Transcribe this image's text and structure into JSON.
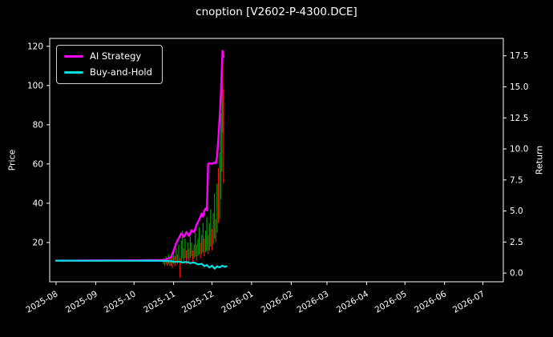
{
  "chart_data": {
    "type": "line",
    "title": "cnoption [V2602-P-4300.DCE]",
    "xlabel": "",
    "ylabel_left": "Price",
    "ylabel_right": "Return",
    "xlim": [
      -5,
      350
    ],
    "ylim_left": [
      0,
      124
    ],
    "ylim_right": [
      -0.7,
      18.9
    ],
    "grid": false,
    "legend_position": "upper-left",
    "frame_color": "#ffffff",
    "text_color": "#ffffff",
    "background_color": "#000000",
    "x_ticks": [
      {
        "pos": 0,
        "label": "2025-08"
      },
      {
        "pos": 31,
        "label": "2025-09"
      },
      {
        "pos": 61,
        "label": "2025-10"
      },
      {
        "pos": 92,
        "label": "2025-11"
      },
      {
        "pos": 122,
        "label": "2025-12"
      },
      {
        "pos": 153,
        "label": "2026-01"
      },
      {
        "pos": 184,
        "label": "2026-02"
      },
      {
        "pos": 212,
        "label": "2026-03"
      },
      {
        "pos": 243,
        "label": "2026-04"
      },
      {
        "pos": 273,
        "label": "2026-05"
      },
      {
        "pos": 304,
        "label": "2026-06"
      },
      {
        "pos": 334,
        "label": "2026-07"
      }
    ],
    "y_ticks_left": [
      {
        "pos": 20,
        "label": "20"
      },
      {
        "pos": 40,
        "label": "40"
      },
      {
        "pos": 60,
        "label": "60"
      },
      {
        "pos": 80,
        "label": "80"
      },
      {
        "pos": 100,
        "label": "100"
      },
      {
        "pos": 120,
        "label": "120"
      }
    ],
    "y_ticks_right": [
      {
        "pos": 0,
        "label": "0.0"
      },
      {
        "pos": 2.5,
        "label": "2.5"
      },
      {
        "pos": 5.0,
        "label": "5.0"
      },
      {
        "pos": 7.5,
        "label": "7.5"
      },
      {
        "pos": 10.0,
        "label": "10.0"
      },
      {
        "pos": 12.5,
        "label": "12.5"
      },
      {
        "pos": 15.0,
        "label": "15.0"
      },
      {
        "pos": 17.5,
        "label": "17.5"
      }
    ],
    "series": [
      {
        "name": "AI Strategy",
        "color": "#ff00ff",
        "axis": "right",
        "width": 2.4,
        "x": [
          0,
          15,
          30,
          45,
          60,
          75,
          85,
          90,
          92,
          94,
          96,
          98,
          100,
          102,
          104,
          106,
          108,
          110,
          112,
          114,
          115,
          116,
          117,
          118,
          119,
          120,
          122,
          124,
          125,
          126,
          127,
          128,
          129,
          129.6,
          130.3,
          131
        ],
        "y": [
          1.0,
          1.0,
          1.02,
          1.02,
          1.03,
          1.04,
          1.05,
          1.3,
          1.8,
          2.4,
          2.8,
          3.2,
          2.9,
          3.3,
          3.0,
          3.45,
          3.3,
          3.9,
          4.3,
          4.8,
          4.55,
          5.0,
          5.2,
          5.05,
          8.8,
          8.85,
          8.8,
          8.9,
          8.85,
          9.4,
          10.8,
          12.5,
          14.5,
          16.2,
          17.9,
          17.4
        ]
      },
      {
        "name": "Buy-and-Hold",
        "color": "#00e0e0",
        "axis": "right",
        "width": 2.2,
        "x": [
          0,
          15,
          30,
          45,
          60,
          75,
          85,
          90,
          93,
          96,
          99,
          102,
          105,
          108,
          111,
          114,
          116,
          118,
          120,
          122,
          124,
          126,
          128,
          130,
          132,
          133.5
        ],
        "y": [
          1.0,
          1.0,
          0.99,
          1.0,
          0.99,
          1.0,
          0.98,
          0.95,
          0.9,
          0.93,
          0.85,
          0.9,
          0.8,
          0.85,
          0.7,
          0.75,
          0.55,
          0.65,
          0.45,
          0.6,
          0.35,
          0.55,
          0.45,
          0.6,
          0.5,
          0.55
        ]
      }
    ],
    "candles": {
      "axis": "left",
      "up_color": "#00a000",
      "down_color": "#ee1111",
      "points": [
        [
          84,
          9,
          12,
          "u"
        ],
        [
          85,
          8,
          11,
          "d"
        ],
        [
          86,
          9,
          13,
          "u"
        ],
        [
          87,
          8,
          12,
          "d"
        ],
        [
          88,
          9,
          14,
          "u"
        ],
        [
          89,
          8,
          12,
          "d"
        ],
        [
          90,
          8,
          12,
          "u"
        ],
        [
          91,
          7,
          13,
          "d"
        ],
        [
          92,
          9,
          15,
          "u"
        ],
        [
          93,
          8,
          13,
          "d"
        ],
        [
          94,
          10,
          17,
          "u"
        ],
        [
          95,
          9,
          14,
          "d"
        ],
        [
          96,
          11,
          19,
          "u"
        ],
        [
          97,
          2,
          12,
          "d"
        ],
        [
          98,
          10,
          21,
          "u"
        ],
        [
          99,
          12,
          26,
          "u"
        ],
        [
          100,
          10,
          17,
          "d"
        ],
        [
          101,
          12,
          22,
          "u"
        ],
        [
          102,
          9,
          16,
          "d"
        ],
        [
          103,
          12,
          20,
          "u"
        ],
        [
          104,
          10,
          17,
          "d"
        ],
        [
          105,
          12,
          23,
          "u"
        ],
        [
          106,
          13,
          20,
          "u"
        ],
        [
          107,
          10,
          16,
          "d"
        ],
        [
          108,
          12,
          19,
          "u"
        ],
        [
          109,
          13,
          25,
          "u"
        ],
        [
          110,
          11,
          19,
          "d"
        ],
        [
          111,
          13,
          22,
          "u"
        ],
        [
          112,
          14,
          28,
          "u"
        ],
        [
          113,
          12,
          20,
          "d"
        ],
        [
          114,
          14,
          24,
          "u"
        ],
        [
          115,
          15,
          30,
          "u"
        ],
        [
          116,
          13,
          22,
          "d"
        ],
        [
          117,
          15,
          26,
          "u"
        ],
        [
          118,
          16,
          33,
          "u"
        ],
        [
          119,
          14,
          24,
          "d"
        ],
        [
          120,
          16,
          30,
          "u"
        ],
        [
          121,
          18,
          37,
          "u"
        ],
        [
          122,
          16,
          27,
          "d"
        ],
        [
          123,
          19,
          35,
          "u"
        ],
        [
          124,
          22,
          45,
          "u"
        ],
        [
          125,
          20,
          32,
          "d"
        ],
        [
          126,
          25,
          50,
          "u"
        ],
        [
          127,
          30,
          58,
          "d"
        ],
        [
          128,
          32,
          66,
          "u"
        ],
        [
          129,
          42,
          86,
          "u"
        ],
        [
          129.8,
          56,
          104,
          "u"
        ],
        [
          130.4,
          76,
          116,
          "d"
        ],
        [
          131,
          50,
          98,
          "d"
        ]
      ]
    }
  }
}
